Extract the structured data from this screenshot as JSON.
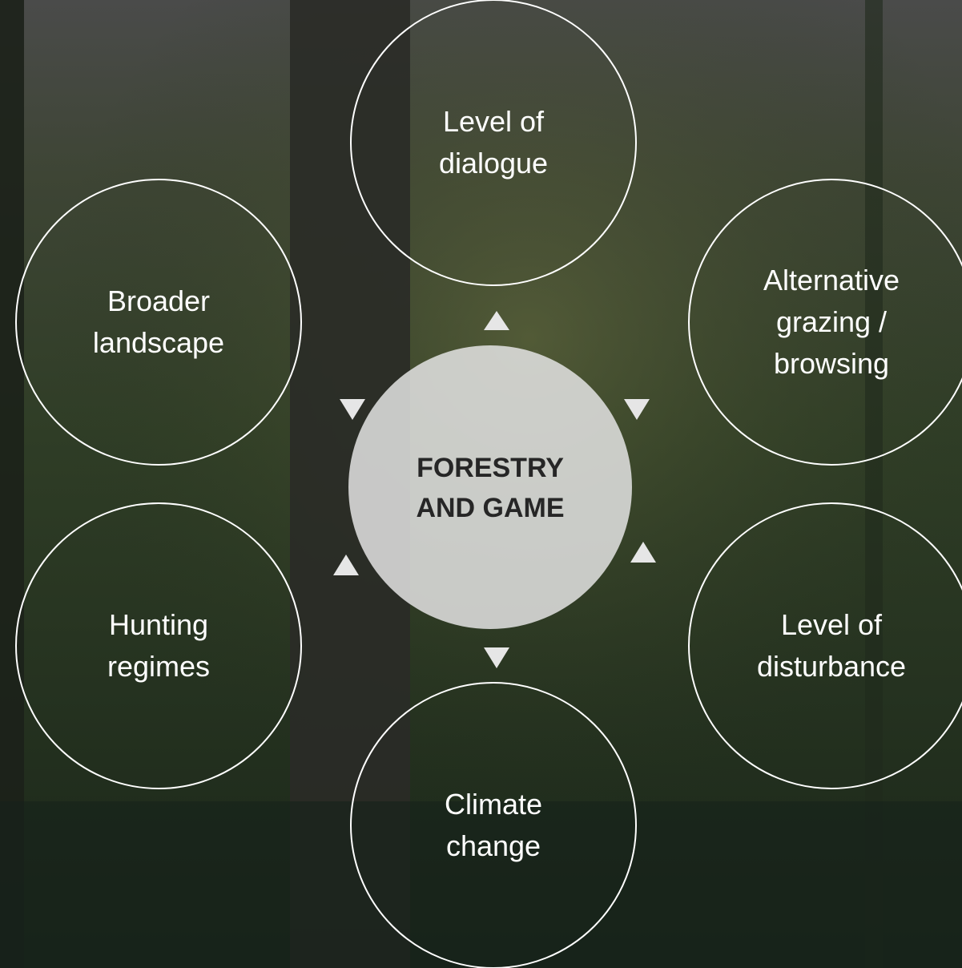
{
  "center": {
    "lines": [
      "FORESTRY",
      "AND GAME"
    ]
  },
  "nodes": [
    {
      "lines": [
        "Level of",
        "dialogue"
      ]
    },
    {
      "lines": [
        "Alternative",
        "grazing /",
        "browsing"
      ]
    },
    {
      "lines": [
        "Level of",
        "disturbance"
      ]
    },
    {
      "lines": [
        "Climate",
        "change"
      ]
    },
    {
      "lines": [
        "Hunting",
        "regimes"
      ]
    },
    {
      "lines": [
        "Broader",
        "landscape"
      ]
    }
  ]
}
